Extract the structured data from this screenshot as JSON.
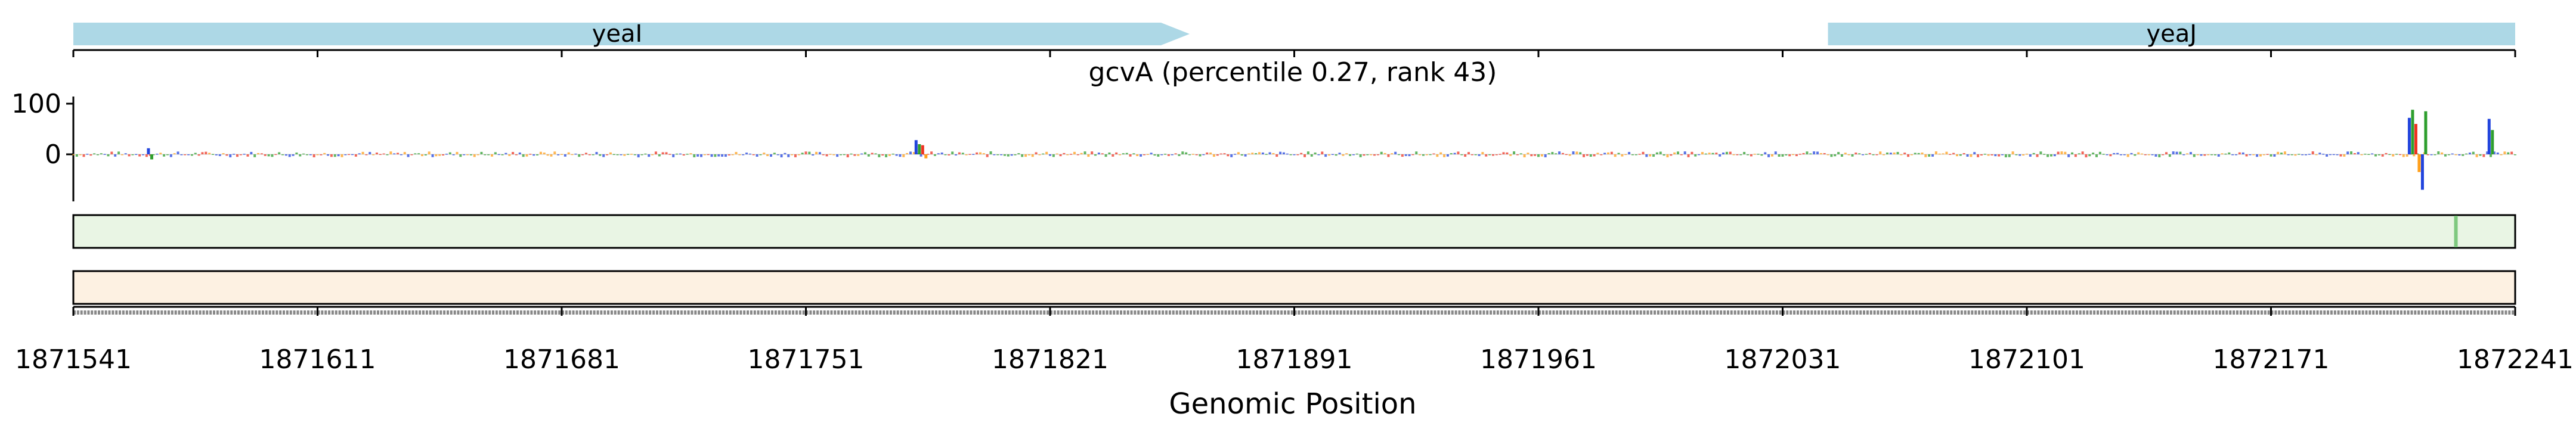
{
  "chart_data": {
    "type": "genome-track",
    "title": "gcvA (percentile 0.27, rank 43)",
    "xlabel": "Genomic Position",
    "ylabel": "",
    "xlim": [
      1871541,
      1872241
    ],
    "x_ticks": [
      1871541,
      1871611,
      1871681,
      1871751,
      1871821,
      1871891,
      1871961,
      1872031,
      1872101,
      1872171,
      1872241
    ],
    "x_tick_labels": [
      "1871541",
      "1871611",
      "1871681",
      "1871751",
      "1871821",
      "1871891",
      "1871961",
      "1872031",
      "1872101",
      "1872171",
      "1872241"
    ],
    "y_ticks": [
      100,
      0
    ],
    "y_tick_labels": [
      "100",
      "0"
    ],
    "ylim": [
      -85,
      115
    ],
    "genes": [
      {
        "name": "yeaI",
        "start": 1871541,
        "end": 1871861,
        "strand": "+",
        "color": "#add8e6"
      },
      {
        "name": "yeaJ",
        "start": 1872044,
        "end": 1872241,
        "strand": "+",
        "color": "#add8e6"
      }
    ],
    "attribution_peaks": [
      {
        "position": 1872213,
        "values": [
          72,
          88,
          60,
          -35,
          -70,
          85
        ]
      },
      {
        "position": 1872234,
        "values": [
          70,
          48
        ]
      },
      {
        "position": 1871784,
        "values": [
          28,
          20,
          18,
          -8
        ]
      },
      {
        "position": 1871563,
        "values": [
          12,
          -10
        ]
      }
    ],
    "attribution_noise_amplitude": 6,
    "base_colors": {
      "A": "#2e9e2e",
      "C": "#2244dd",
      "G": "#ff9f1a",
      "T": "#ee3322"
    },
    "heatmap_tracks": [
      {
        "name": "track-green",
        "color": "#e9f5e4",
        "highlight_position": 1872224,
        "highlight_color": "#7fc97f"
      },
      {
        "name": "track-orange",
        "color": "#fdf1e2"
      }
    ]
  }
}
